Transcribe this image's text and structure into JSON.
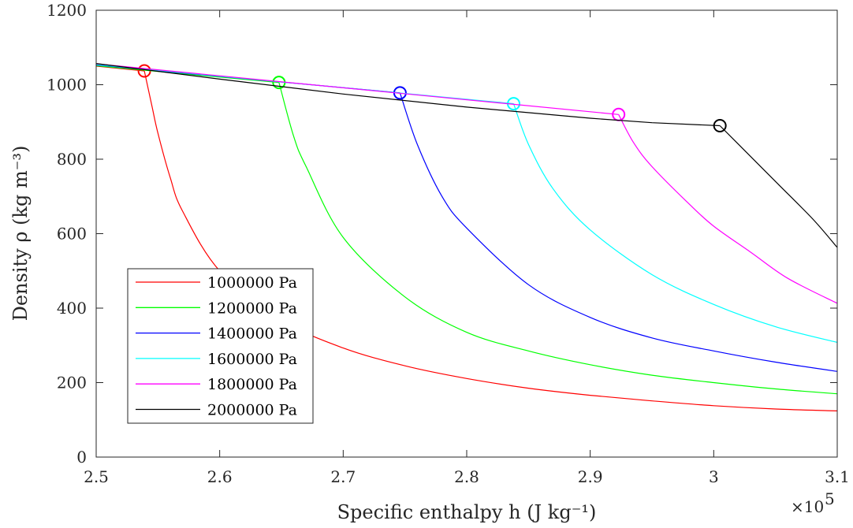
{
  "chart_data": {
    "type": "line",
    "xlabel": "Specific enthalpy h (J kg⁻¹)",
    "ylabel": "Density ρ (kg m⁻³)",
    "x_exponent_label": "×10",
    "x_exponent": "5",
    "xlim": [
      2.5,
      3.1
    ],
    "ylim": [
      0,
      1200
    ],
    "x_unit_scale": 100000,
    "xticks": [
      "2.5",
      "2.6",
      "2.7",
      "2.8",
      "2.9",
      "3",
      "3.1"
    ],
    "yticks": [
      "0",
      "200",
      "400",
      "600",
      "800",
      "1000",
      "1200"
    ],
    "grid": false,
    "legend_position": "lower-left",
    "series": [
      {
        "name": "1000000 Pa",
        "color": "#ff0000",
        "marker": {
          "x": 2.539,
          "y": 1037
        },
        "x": [
          2.5,
          2.539,
          2.545,
          2.55,
          2.56,
          2.57,
          2.6,
          2.65,
          2.7,
          2.75,
          2.8,
          2.85,
          2.9,
          2.95,
          3.0,
          3.05,
          3.1
        ],
        "y": [
          1050,
          1037,
          945,
          870,
          750,
          660,
          500,
          368,
          293,
          245,
          211,
          185,
          166,
          151,
          138,
          129,
          124
        ]
      },
      {
        "name": "1200000 Pa",
        "color": "#00ff00",
        "marker": {
          "x": 2.648,
          "y": 1006
        },
        "x": [
          2.5,
          2.648,
          2.66,
          2.67,
          2.7,
          2.75,
          2.8,
          2.85,
          2.9,
          2.95,
          3.0,
          3.05,
          3.1
        ],
        "y": [
          1051,
          1006,
          860,
          780,
          590,
          430,
          335,
          285,
          248,
          220,
          200,
          183,
          170
        ]
      },
      {
        "name": "1400000 Pa",
        "color": "#0000ff",
        "marker": {
          "x": 2.746,
          "y": 978
        },
        "x": [
          2.5,
          2.746,
          2.76,
          2.78,
          2.8,
          2.85,
          2.9,
          2.95,
          3.0,
          3.05,
          3.1
        ],
        "y": [
          1053,
          978,
          840,
          700,
          615,
          463,
          375,
          320,
          285,
          255,
          230
        ]
      },
      {
        "name": "1600000 Pa",
        "color": "#00ffff",
        "marker": {
          "x": 2.838,
          "y": 949
        },
        "x": [
          2.5,
          2.838,
          2.85,
          2.87,
          2.9,
          2.95,
          3.0,
          3.05,
          3.1
        ],
        "y": [
          1054,
          949,
          840,
          720,
          610,
          490,
          410,
          350,
          308
        ]
      },
      {
        "name": "1800000 Pa",
        "color": "#ff00ff",
        "marker": {
          "x": 2.923,
          "y": 920
        },
        "x": [
          2.5,
          2.923,
          2.935,
          2.95,
          2.98,
          3.0,
          3.03,
          3.06,
          3.1
        ],
        "y": [
          1056,
          920,
          845,
          780,
          680,
          620,
          550,
          480,
          413
        ]
      },
      {
        "name": "2000000 Pa",
        "color": "#000000",
        "marker": {
          "x": 3.005,
          "y": 890
        },
        "x": [
          2.5,
          2.6,
          2.7,
          2.8,
          2.9,
          2.95,
          3.005,
          3.02,
          3.05,
          3.08,
          3.1
        ],
        "y": [
          1057,
          1015,
          975,
          940,
          910,
          898,
          890,
          840,
          740,
          640,
          563
        ]
      }
    ]
  }
}
